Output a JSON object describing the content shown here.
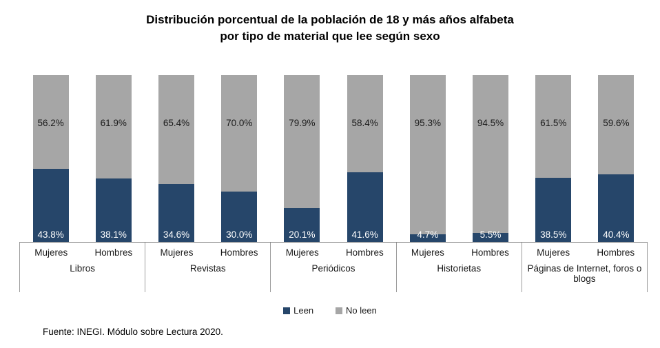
{
  "title": {
    "line1": "Distribución porcentual de la población de 18 y más años alfabeta",
    "line2": "por tipo de material que lee según sexo"
  },
  "chart_data": {
    "type": "bar",
    "stacked": true,
    "unit": "%",
    "ylim": [
      0,
      100
    ],
    "grid": false,
    "legend_position": "bottom",
    "categories": [
      "Libros",
      "Revistas",
      "Periódicos",
      "Historietas",
      "Páginas de Internet, foros o blogs"
    ],
    "subcategories": [
      "Mujeres",
      "Hombres"
    ],
    "series": [
      {
        "name": "Leen",
        "color": "#26466A",
        "values": {
          "Mujeres": [
            43.8,
            34.6,
            20.1,
            4.7,
            38.5
          ],
          "Hombres": [
            38.1,
            30.0,
            41.6,
            5.5,
            40.4
          ]
        }
      },
      {
        "name": "No leen",
        "color": "#A6A6A6",
        "values": {
          "Mujeres": [
            56.2,
            65.4,
            79.9,
            95.3,
            61.5
          ],
          "Hombres": [
            61.9,
            70.0,
            58.4,
            94.5,
            59.6
          ]
        }
      }
    ]
  },
  "legend": {
    "items": [
      {
        "label": "Leen",
        "color": "#26466A"
      },
      {
        "label": "No leen",
        "color": "#A6A6A6"
      }
    ]
  },
  "footer": {
    "source": "Fuente: INEGI. Módulo sobre Lectura 2020."
  },
  "colors": {
    "leen": "#26466A",
    "no_leen": "#A6A6A6",
    "axis_line": "#808080",
    "value_label_dark": "#1a1a1a",
    "value_label_light": "#ffffff"
  }
}
